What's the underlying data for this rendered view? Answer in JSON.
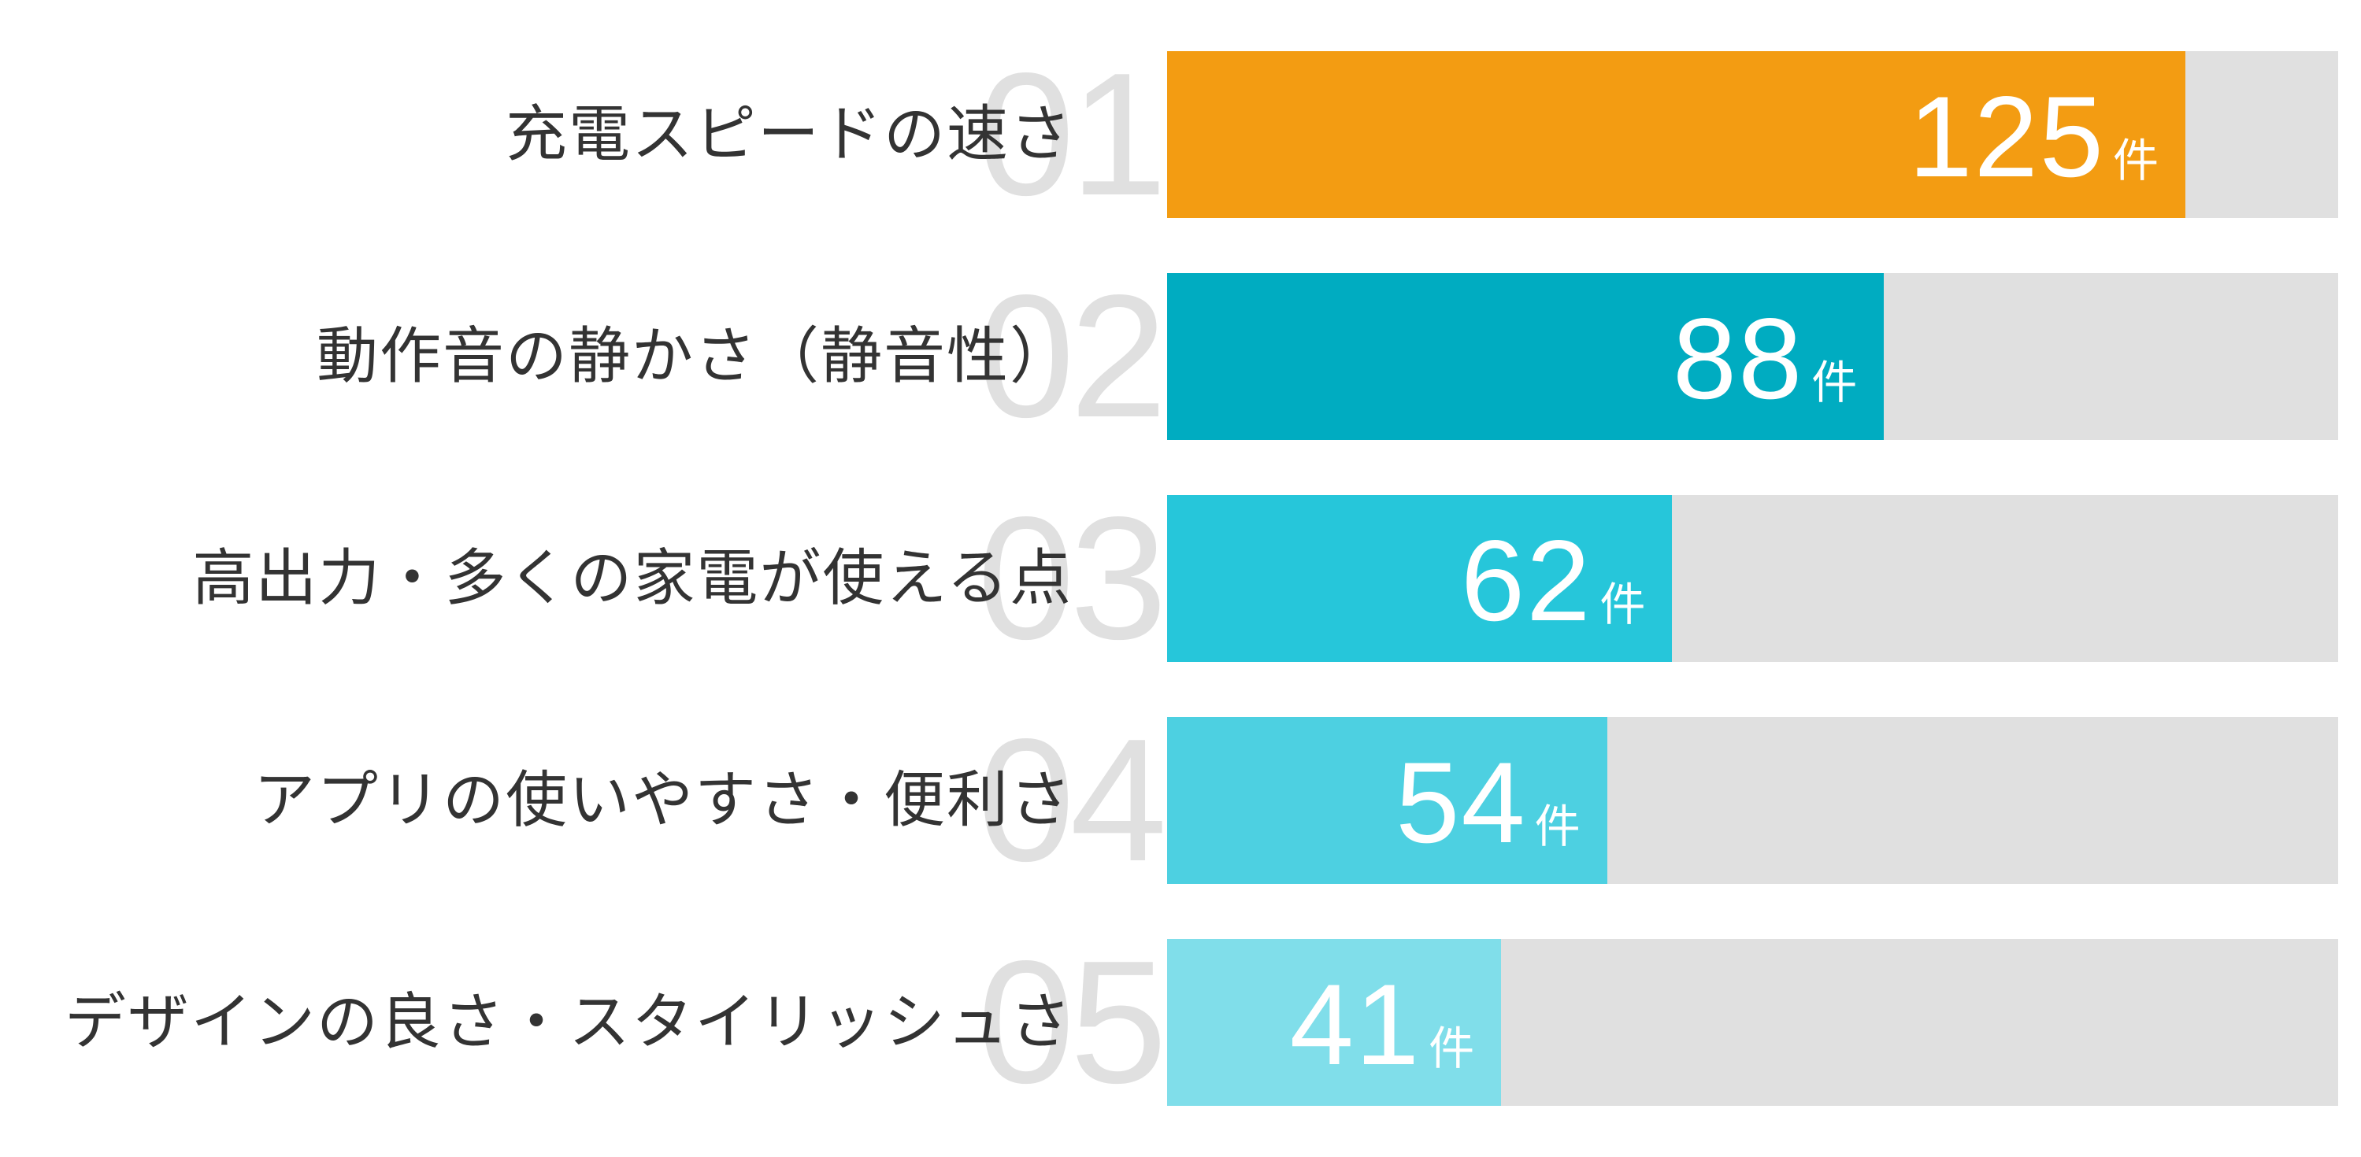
{
  "chart_data": {
    "type": "bar",
    "orientation": "horizontal",
    "title": "",
    "xlabel": "",
    "ylabel": "",
    "unit": "件",
    "xlim": [
      0,
      143.75
    ],
    "grid": false,
    "legend": null,
    "categories": [
      "充電スピードの速さ",
      "動作音の静かさ（静音性）",
      "高出力・多くの家電が使える点",
      "アプリの使いやすさ・便利さ",
      "デザインの良さ・スタイリッシュさ"
    ],
    "ranks": [
      "01",
      "02",
      "03",
      "04",
      "05"
    ],
    "values": [
      125,
      88,
      62,
      54,
      41
    ],
    "colors": [
      "#F39C12",
      "#00ACC1",
      "#26C6DA",
      "#4DD0E1",
      "#80DEEA"
    ],
    "track_color": "#E0E0E0"
  },
  "rows": [
    {
      "rank": "01",
      "label": "充電スピードの速さ",
      "value": "125",
      "unit": "件"
    },
    {
      "rank": "02",
      "label": "動作音の静かさ（静音性）",
      "value": "88",
      "unit": "件"
    },
    {
      "rank": "03",
      "label": "高出力・多くの家電が使える点",
      "value": "62",
      "unit": "件"
    },
    {
      "rank": "04",
      "label": "アプリの使いやすさ・便利さ",
      "value": "54",
      "unit": "件"
    },
    {
      "rank": "05",
      "label": "デザインの良さ・スタイリッシュさ",
      "value": "41",
      "unit": "件"
    }
  ]
}
